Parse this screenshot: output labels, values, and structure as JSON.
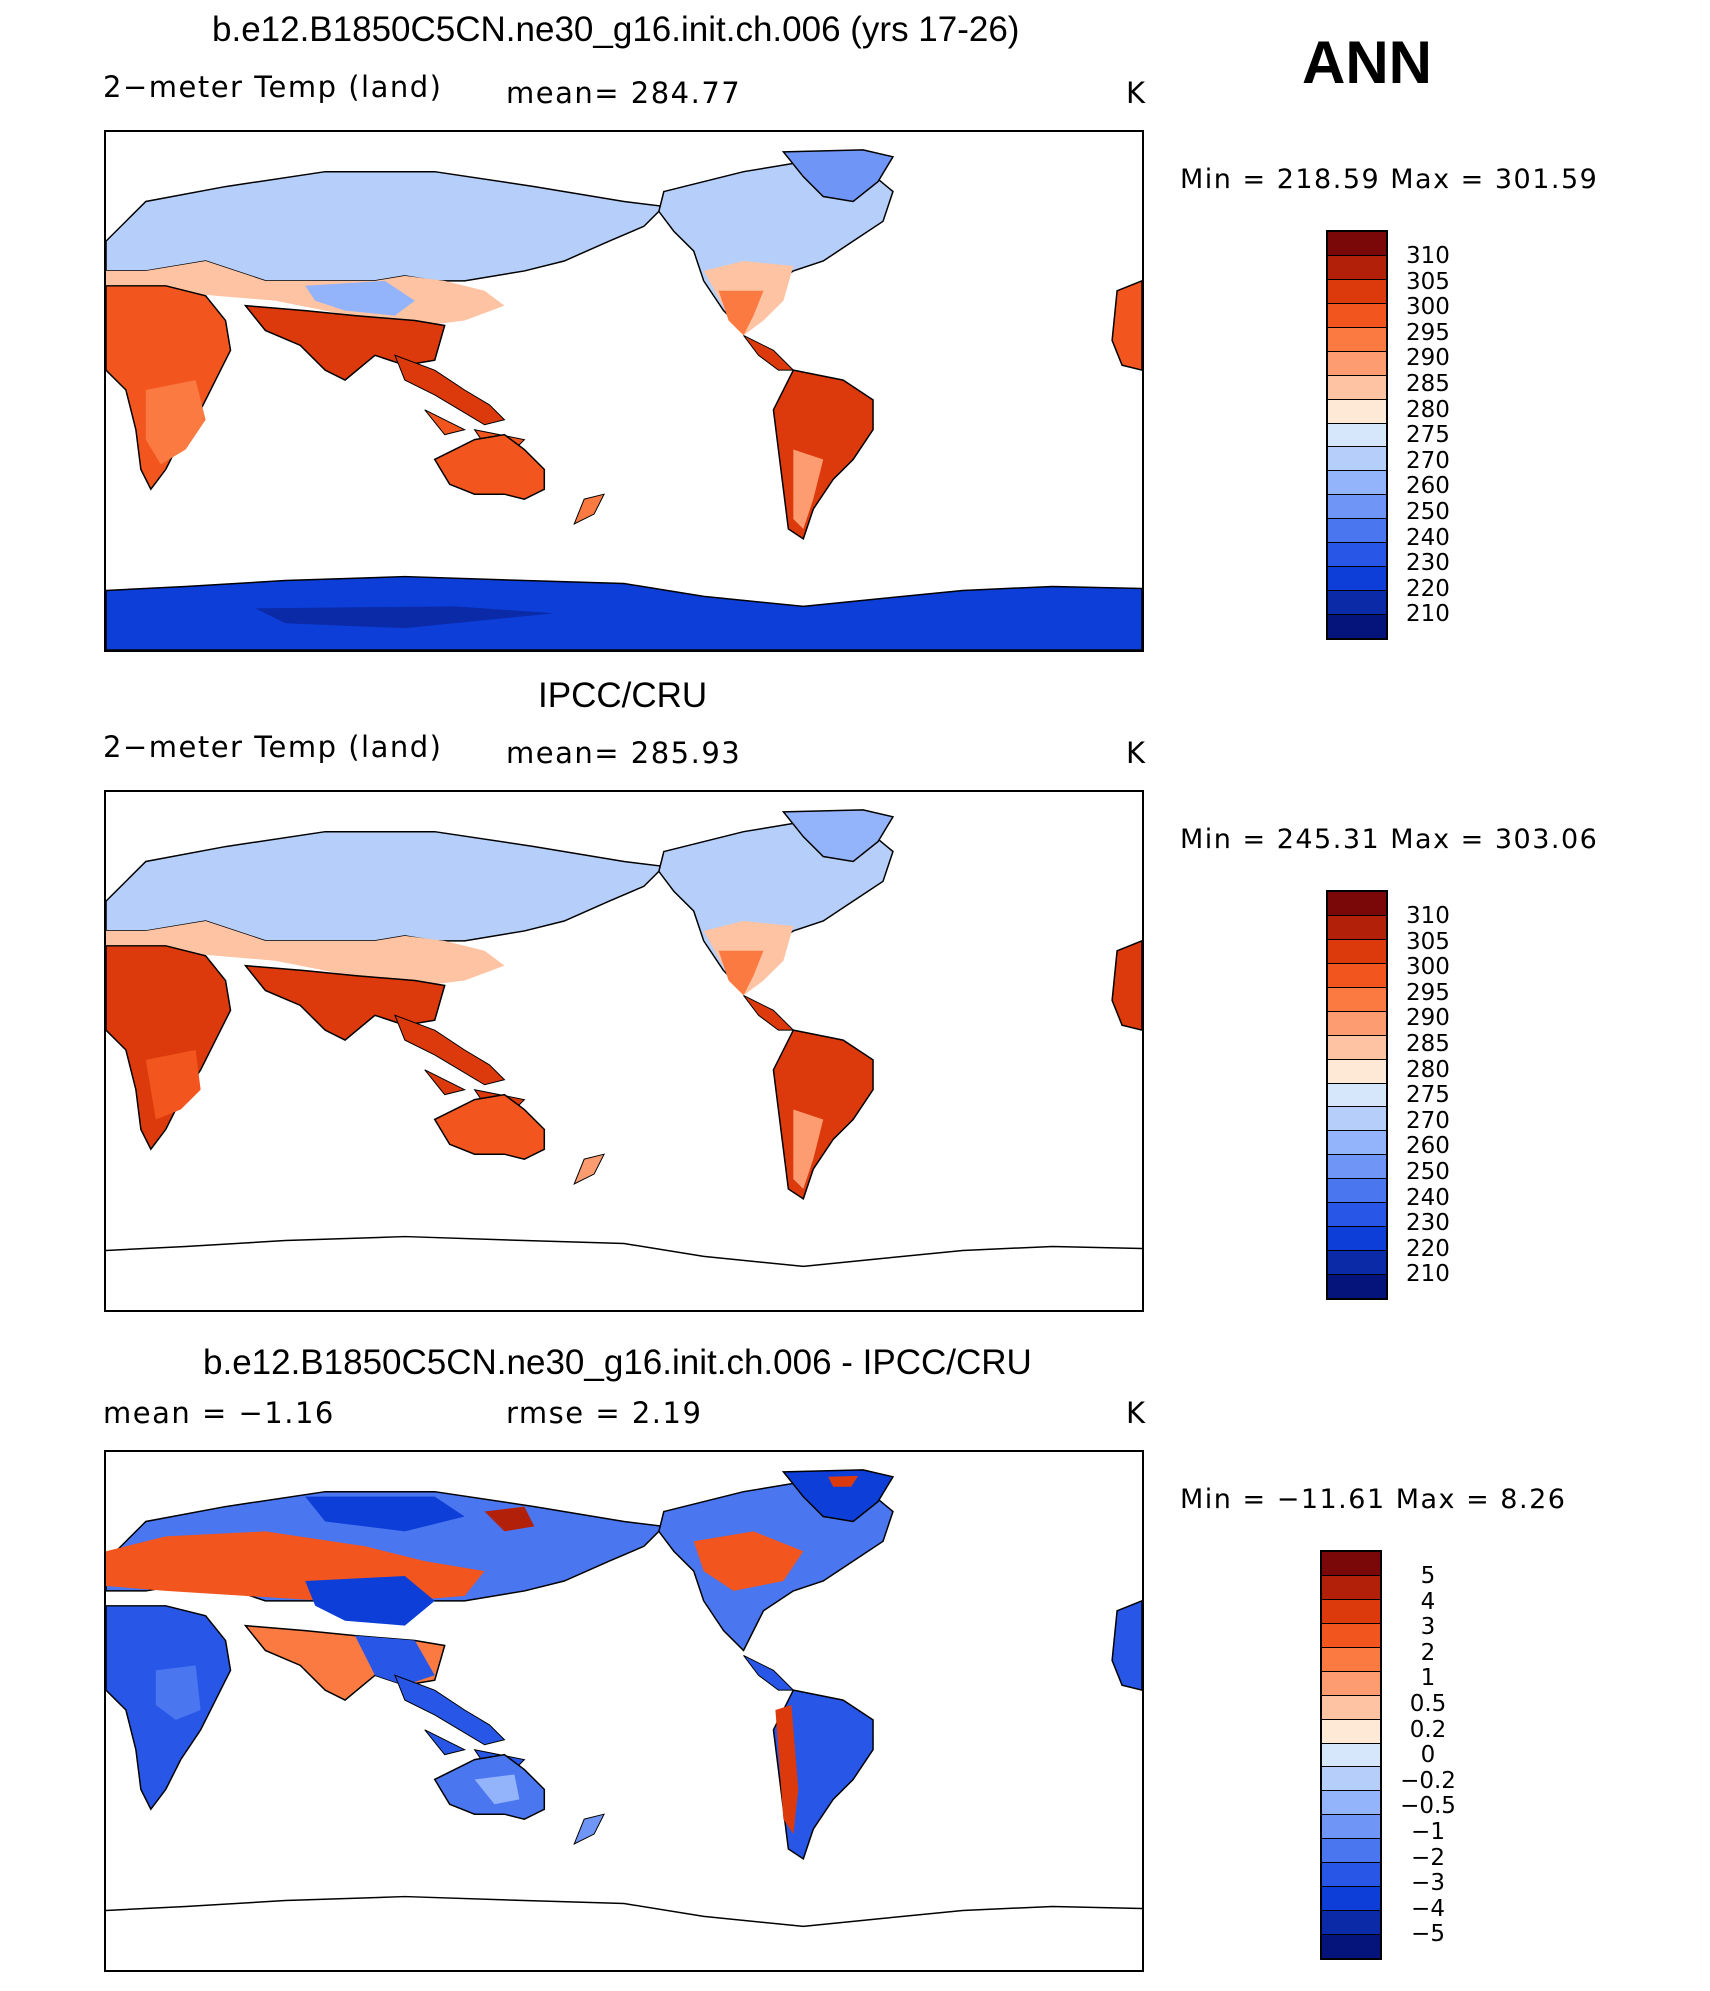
{
  "season": "ANN",
  "panels": [
    {
      "title": "b.e12.B1850C5CN.ne30_g16.init.ch.006 (yrs 17-26)",
      "left_label": "2−meter Temp (land)",
      "center_label": "mean=  284.77",
      "units": "K",
      "minmax": "Min  =  218.59  Max  =  301.59",
      "legend_labels": [
        "310",
        "305",
        "300",
        "295",
        "290",
        "285",
        "280",
        "275",
        "270",
        "260",
        "250",
        "240",
        "230",
        "220",
        "210"
      ]
    },
    {
      "title": "IPCC/CRU",
      "left_label": "2−meter Temp (land)",
      "center_label": "mean=  285.93",
      "units": "K",
      "minmax": "Min  =  245.31  Max  =  303.06",
      "legend_labels": [
        "310",
        "305",
        "300",
        "295",
        "290",
        "285",
        "280",
        "275",
        "270",
        "260",
        "250",
        "240",
        "230",
        "220",
        "210"
      ]
    },
    {
      "title": "b.e12.B1850C5CN.ne30_g16.init.ch.006 - IPCC/CRU",
      "left_label": "mean  =    −1.16",
      "center_label": "rmse  =     2.19",
      "units": "K",
      "minmax": "Min  =  −11.61  Max  =     8.26",
      "legend_labels": [
        "5",
        "4",
        "3",
        "2",
        "1",
        "0.5",
        "0.2",
        "0",
        "−0.2",
        "−0.5",
        "−1",
        "−2",
        "−3",
        "−4",
        "−5"
      ]
    }
  ],
  "colors": {
    "scale": [
      "#7a0808",
      "#b3200a",
      "#dc3a0c",
      "#f2561e",
      "#fa7a42",
      "#fc9c70",
      "#fdc3a3",
      "#fde9d6",
      "#d7e7fb",
      "#b6cffa",
      "#93b3fa",
      "#6f96f6",
      "#4a76f0",
      "#2857e8",
      "#0d3ed8",
      "#0a2aa8",
      "#04147a"
    ],
    "ocean": "#ffffff",
    "coast": "#000000"
  }
}
